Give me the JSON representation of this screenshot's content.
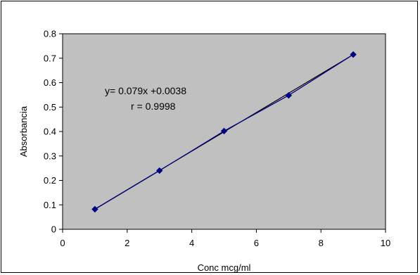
{
  "chart_data": {
    "type": "scatter",
    "title": "",
    "xlabel": "Conc mcg/ml",
    "ylabel": "Absorbancia",
    "xlim": [
      0,
      10
    ],
    "ylim": [
      0,
      0.8
    ],
    "x_ticks": [
      "0",
      "2",
      "4",
      "6",
      "8",
      "10"
    ],
    "y_ticks": [
      "0",
      "0.1",
      "0.2",
      "0.3",
      "0.4",
      "0.5",
      "0.6",
      "0.7",
      "0.8"
    ],
    "grid": false,
    "legend": "none",
    "series": [
      {
        "x": [
          1,
          3,
          5,
          7,
          9
        ],
        "y": [
          0.082,
          0.24,
          0.402,
          0.548,
          0.715
        ],
        "connected": true
      }
    ],
    "trendline": {
      "type": "linear",
      "slope": 0.079,
      "intercept": 0.0038,
      "x_range": [
        1,
        9
      ]
    },
    "annotations": [
      "y= 0.079x +0.0038",
      "r = 0.9998"
    ],
    "colors": {
      "plot_background": "#c0c0c0",
      "series": "#000080",
      "trendline": "#000000"
    }
  }
}
